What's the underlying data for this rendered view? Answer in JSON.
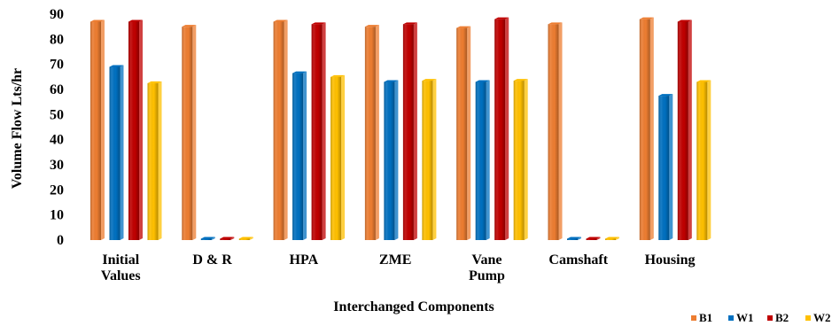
{
  "chart_data": {
    "type": "bar",
    "title": "",
    "xlabel": "Interchanged Components",
    "ylabel": "Volume Flow Lts/hr",
    "ylim": [
      0,
      90
    ],
    "yticks": [
      0,
      10,
      20,
      30,
      40,
      50,
      60,
      70,
      80,
      90
    ],
    "categories": [
      [
        "Initial",
        "Values"
      ],
      [
        "D & R"
      ],
      [
        "HPA"
      ],
      [
        "ZME"
      ],
      [
        "Vane",
        "Pump"
      ],
      [
        "Camshaft"
      ],
      [
        "Housing"
      ]
    ],
    "series": [
      {
        "name": "B1",
        "color": "#ED7D31",
        "values": [
          87,
          85,
          87,
          85,
          84.5,
          86,
          88
        ]
      },
      {
        "name": "W1",
        "color": "#0070C0",
        "values": [
          69,
          0,
          66.5,
          63,
          63,
          0,
          57.5
        ]
      },
      {
        "name": "B2",
        "color": "#C00000",
        "values": [
          87,
          0,
          86,
          86,
          88,
          0,
          87
        ]
      },
      {
        "name": "W2",
        "color": "#FFC000",
        "values": [
          62.5,
          0,
          65,
          63.5,
          63.5,
          0,
          63
        ]
      }
    ],
    "legend_position": "bottom-right",
    "grid": false
  }
}
